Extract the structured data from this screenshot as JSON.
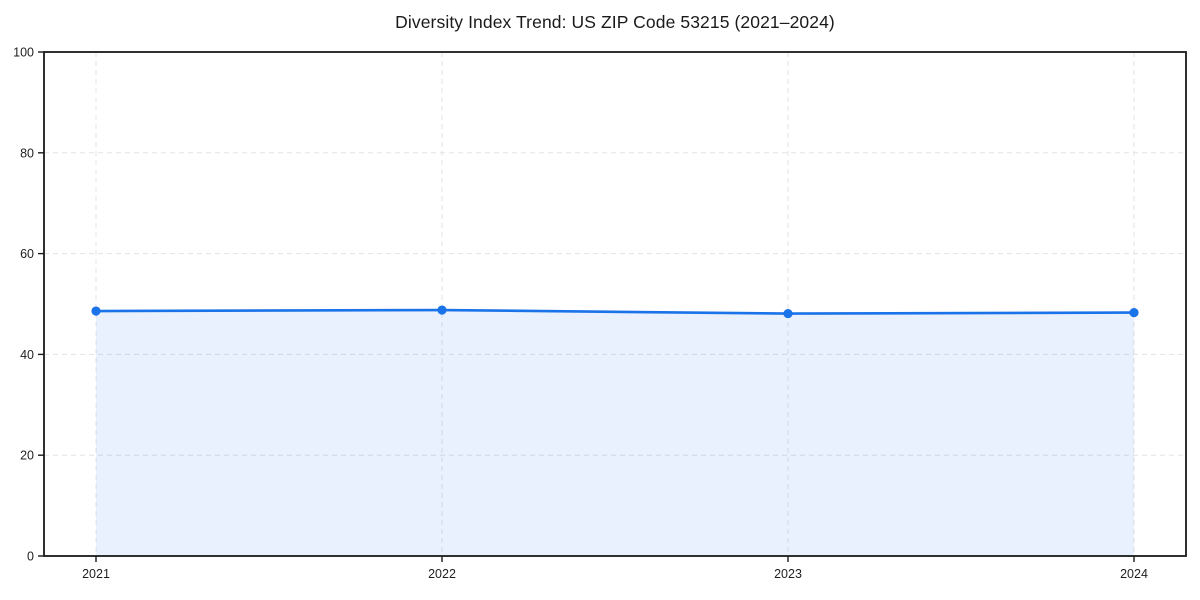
{
  "chart_data": {
    "type": "area",
    "title": "Diversity Index Trend: US ZIP Code 53215 (2021–2024)",
    "categories": [
      "2021",
      "2022",
      "2023",
      "2024"
    ],
    "series": [
      {
        "name": "Diversity Index",
        "values": [
          48.6,
          48.8,
          48.1,
          48.3
        ]
      }
    ],
    "xlabel": "",
    "ylabel": "",
    "ylim": [
      0,
      100
    ],
    "yticks": [
      0,
      20,
      40,
      60,
      80,
      100
    ],
    "grid": true,
    "grid_style": "dashed",
    "legend_position": "none",
    "marker": "circle",
    "colors": {
      "line": "#1a73e8",
      "marker": "#1a73e8",
      "fill": "rgba(26,115,232,0.10)",
      "grid": "#e3e3e3",
      "spine": "#1a1a1a",
      "tick_text": "#1f1f1f",
      "background": "#ffffff"
    }
  }
}
